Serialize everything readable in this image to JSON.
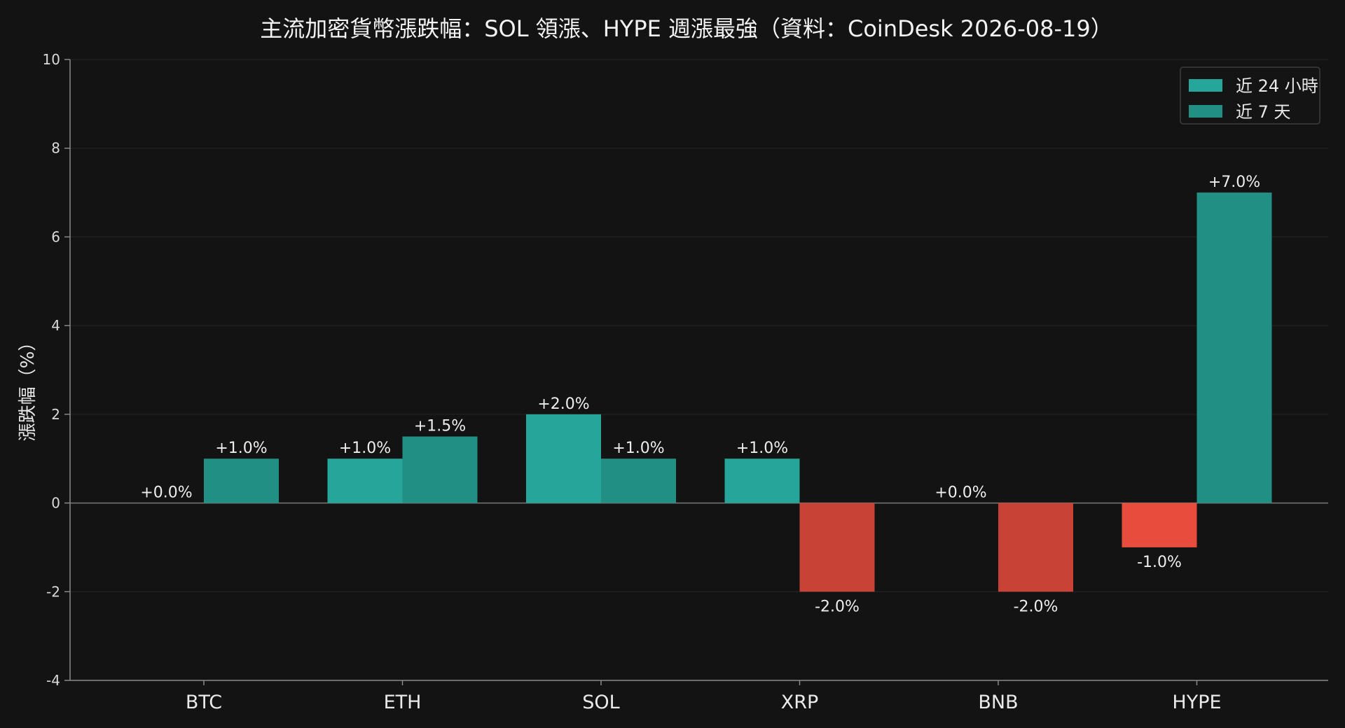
{
  "chart_data": {
    "type": "bar",
    "title": "主流加密貨幣漲跌幅：SOL 領漲、HYPE 週漲最強（資料：CoinDesk 2026-08-19）",
    "xlabel": "",
    "ylabel": "漲跌幅（%）",
    "ylim": [
      -4,
      10
    ],
    "yticks": [
      -4,
      -2,
      0,
      2,
      4,
      6,
      8,
      10
    ],
    "grid": true,
    "legend_position": "top-right",
    "categories": [
      "BTC",
      "ETH",
      "SOL",
      "XRP",
      "BNB",
      "HYPE"
    ],
    "series": [
      {
        "name": "近 24 小時",
        "values": [
          0.0,
          1.0,
          2.0,
          1.0,
          0.0,
          -1.0
        ],
        "labels": [
          "+0.0%",
          "+1.0%",
          "+2.0%",
          "+1.0%",
          "+0.0%",
          "-1.0%"
        ],
        "color_positive": "#26a69a",
        "color_negative": "#e74c3c"
      },
      {
        "name": "近 7 天",
        "values": [
          1.0,
          1.5,
          1.0,
          -2.0,
          -2.0,
          7.0
        ],
        "labels": [
          "+1.0%",
          "+1.5%",
          "+1.0%",
          "-2.0%",
          "-2.0%",
          "+7.0%"
        ],
        "color_positive": "#218f84",
        "color_negative": "#c94236"
      }
    ]
  }
}
